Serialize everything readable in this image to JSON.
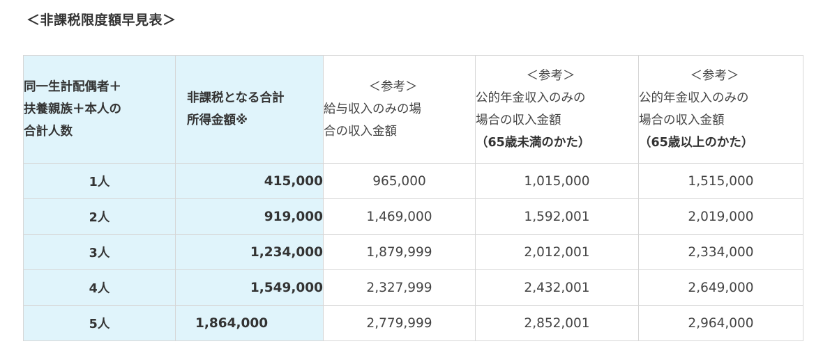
{
  "title": "＜非課税限度額早見表＞",
  "header": {
    "col1_lines": [
      "同一生計配偶者＋",
      "扶養親族＋本人の",
      "合計人数"
    ],
    "col2_lines": [
      "非課税となる合計",
      "所得金額※"
    ],
    "col3_lines": [
      "＜参考＞",
      "給与収入のみの場",
      "合の収入金額"
    ],
    "col4_lines": [
      "＜参考＞",
      "公的年金収入のみの",
      "場合の収入金額",
      "（65歳未満のかた）"
    ],
    "col5_lines": [
      "＜参考＞",
      "公的年金収入のみの",
      "場合の収入金額",
      "（65歳以上のかた）"
    ]
  },
  "rows": [
    {
      "people": "1人",
      "income": "415,000",
      "salary": "965,000",
      "pension_under65": "1,015,000",
      "pension_over65": "1,515,000"
    },
    {
      "people": "2人",
      "income": "919,000",
      "salary": "1,469,000",
      "pension_under65": "1,592,001",
      "pension_over65": "2,019,000"
    },
    {
      "people": "3人",
      "income": "1,234,000",
      "salary": "1,879,999",
      "pension_under65": "2,012,001",
      "pension_over65": "2,334,000"
    },
    {
      "people": "4人",
      "income": "1,549,000",
      "salary": "2,327,999",
      "pension_under65": "2,432,001",
      "pension_over65": "2,649,000"
    },
    {
      "people": "5人",
      "income": "1,864,000",
      "salary": "2,779,999",
      "pension_under65": "2,852,001",
      "pension_over65": "2,964,000"
    }
  ],
  "colors": {
    "header_bg": "#e0f4fb",
    "border": "#d6d6d6",
    "text": "#333333"
  }
}
